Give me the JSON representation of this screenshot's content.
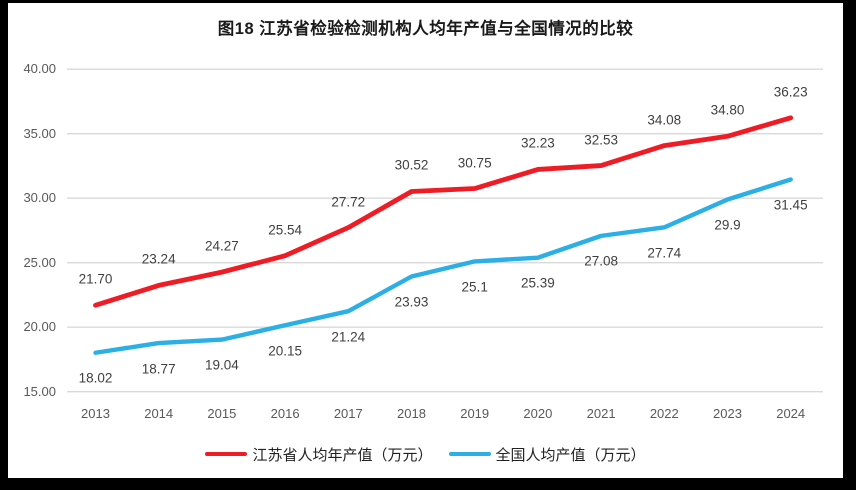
{
  "page": {
    "title": "图18  江苏省检验检测机构人均年产值与全国情况的比较"
  },
  "chart_data": {
    "type": "line",
    "title": "图18  江苏省检验检测机构人均年产值与全国情况的比较",
    "categories": [
      "2013",
      "2014",
      "2015",
      "2016",
      "2017",
      "2018",
      "2019",
      "2020",
      "2021",
      "2022",
      "2023",
      "2024"
    ],
    "series": [
      {
        "name": "江苏省人均年产值（万元）",
        "color": "#ee1c25",
        "values": [
          21.7,
          23.24,
          24.27,
          25.54,
          27.72,
          30.52,
          30.75,
          32.23,
          32.53,
          34.08,
          34.8,
          36.23
        ],
        "labels": [
          "21.70",
          "23.24",
          "24.27",
          "25.54",
          "27.72",
          "30.52",
          "30.75",
          "32.23",
          "32.53",
          "34.08",
          "34.80",
          "36.23"
        ],
        "label_position": "above"
      },
      {
        "name": "全国人均产值（万元）",
        "color": "#2bafe4",
        "values": [
          18.02,
          18.77,
          19.04,
          20.15,
          21.24,
          23.93,
          25.1,
          25.39,
          27.08,
          27.74,
          29.9,
          31.45
        ],
        "labels": [
          "18.02",
          "18.77",
          "19.04",
          "20.15",
          "21.24",
          "23.93",
          "25.1",
          "25.39",
          "27.08",
          "27.74",
          "29.9",
          "31.45"
        ],
        "label_position": "below"
      }
    ],
    "ylim": [
      15,
      40
    ],
    "ytick_step": 5,
    "yticks": [
      "15.00",
      "20.00",
      "25.00",
      "30.00",
      "35.00",
      "40.00"
    ],
    "grid": true,
    "gridline_color": "#d9d9d9",
    "label_color": "#3f3f3f",
    "axis_text_color": "#595959",
    "legend_position": "bottom"
  }
}
